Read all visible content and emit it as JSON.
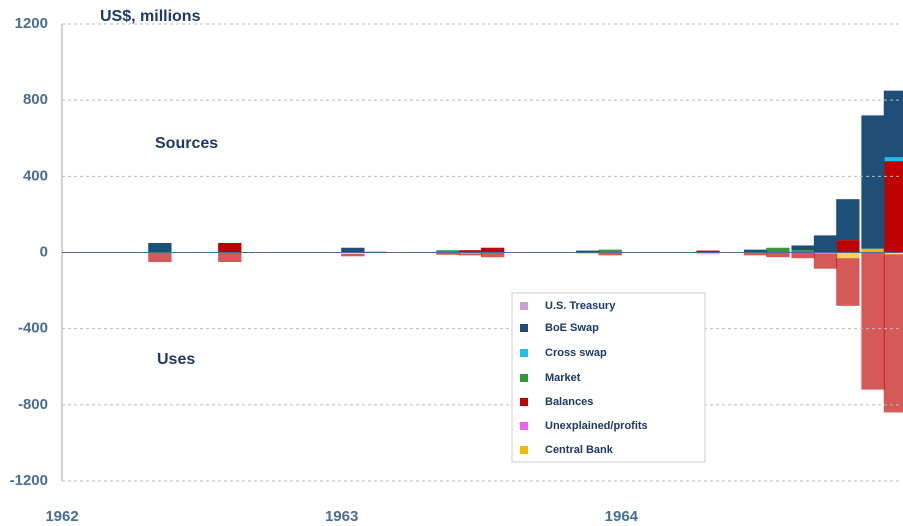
{
  "chart_data": {
    "type": "bar",
    "stacked": true,
    "axis_label": "US$, millions",
    "annotations": [
      "Sources",
      "Uses"
    ],
    "x": [
      1962.35,
      1962.6,
      1962.6,
      1963.04,
      1963.12,
      1963.38,
      1963.46,
      1963.46,
      1963.54,
      1963.54,
      1963.88,
      1963.96,
      1964.31,
      1964.48,
      1964.56,
      1964.65,
      1964.73,
      1964.81,
      1964.81,
      1964.9,
      1964.9,
      1964.98,
      1964.98
    ],
    "series": [
      {
        "name": "U.S. Treasury",
        "color": "#c9a0dc",
        "values": [
          null,
          null,
          null,
          null,
          -5,
          null,
          null,
          null,
          null,
          null,
          null,
          null,
          -10,
          null,
          null,
          null,
          null,
          null,
          null,
          null,
          null,
          null,
          null
        ]
      },
      {
        "name": "BoE Swap",
        "color": "#1f4e79",
        "values": [
          50,
          null,
          null,
          25,
          null,
          null,
          null,
          null,
          null,
          null,
          10,
          null,
          null,
          15,
          null,
          25,
          90,
          215,
          null,
          700,
          null,
          350,
          null
        ]
      },
      {
        "name": "Cross swap",
        "color": "#1fc0e8",
        "values": [
          null,
          null,
          null,
          null,
          null,
          null,
          null,
          null,
          null,
          null,
          null,
          null,
          null,
          null,
          null,
          null,
          null,
          null,
          null,
          null,
          null,
          20,
          null
        ]
      },
      {
        "name": "Market",
        "color": "#2e9a3a",
        "values": [
          null,
          null,
          null,
          null,
          null,
          12,
          null,
          null,
          null,
          null,
          -5,
          15,
          null,
          null,
          25,
          12,
          null,
          null,
          null,
          null,
          null,
          null,
          null
        ]
      },
      {
        "name": "Balances",
        "color": "#c00000",
        "values": [
          -50,
          50,
          -50,
          -12,
          null,
          -12,
          12,
          -10,
          25,
          -25,
          null,
          -15,
          10,
          -15,
          -25,
          -30,
          -80,
          65,
          -250,
          null,
          -720,
          480,
          -830
        ]
      },
      {
        "name": "Unexplained/profits",
        "color": "#f060f0",
        "values": [
          null,
          null,
          null,
          null,
          5,
          null,
          null,
          null,
          null,
          null,
          null,
          null,
          null,
          null,
          null,
          null,
          null,
          null,
          null,
          null,
          null,
          null,
          null
        ]
      },
      {
        "name": "Central Bank",
        "color": "#f5b800",
        "values": [
          null,
          null,
          null,
          -8,
          null,
          null,
          null,
          -5,
          null,
          null,
          null,
          null,
          null,
          null,
          null,
          null,
          -5,
          null,
          -30,
          20,
          null,
          null,
          -10
        ]
      }
    ],
    "xlim": [
      1962,
      1965
    ],
    "xticks": [
      1962,
      1963,
      1964
    ],
    "ylim": [
      -1200,
      1200
    ],
    "yticks": [
      -1200,
      -800,
      -400,
      0,
      400,
      800,
      1200
    ],
    "grid": true
  }
}
